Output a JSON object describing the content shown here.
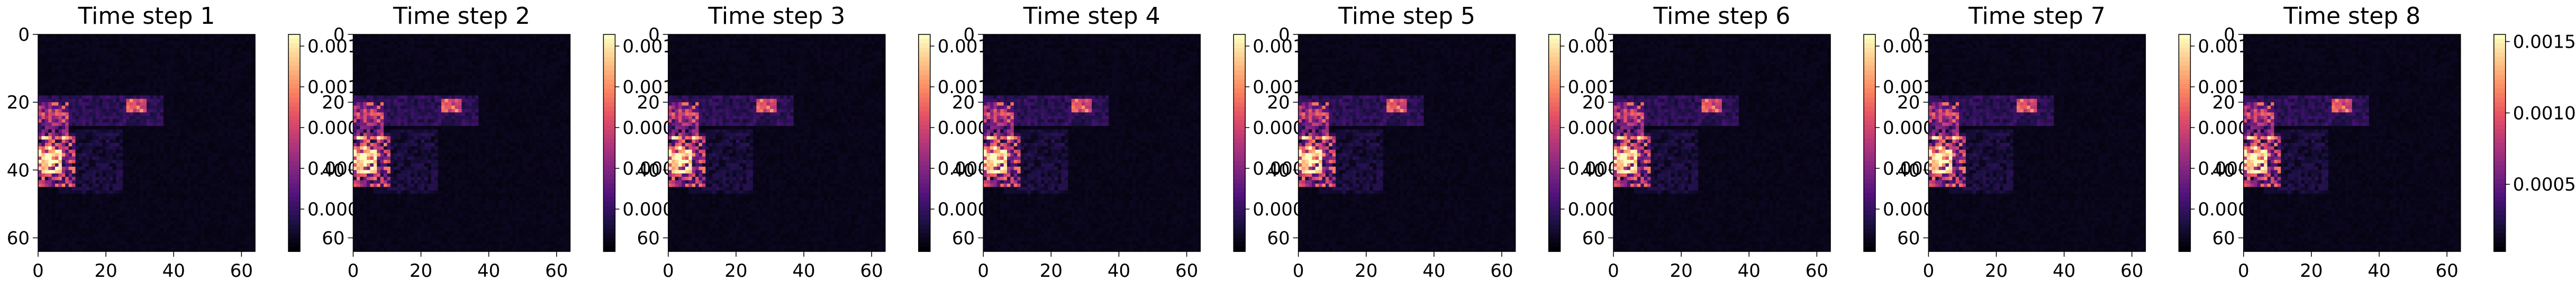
{
  "chart_data": [
    {
      "type": "heatmap",
      "title": "Time step 1",
      "xticks": [
        0,
        20,
        40,
        60
      ],
      "yticks": [
        0,
        20,
        40,
        60
      ],
      "colorbar_ticks": [
        "0.001",
        "0.001",
        "0.000",
        "0.000",
        "0.000"
      ],
      "xlim": [
        0,
        64
      ],
      "ylim": [
        64,
        0
      ]
    },
    {
      "type": "heatmap",
      "title": "Time step 2",
      "xticks": [
        0,
        20,
        40,
        60
      ],
      "yticks": [
        0,
        20,
        40,
        60
      ],
      "colorbar_ticks": [
        "0.001",
        "0.001",
        "0.000",
        "0.000",
        "0.000"
      ],
      "xlim": [
        0,
        64
      ],
      "ylim": [
        64,
        0
      ]
    },
    {
      "type": "heatmap",
      "title": "Time step 3",
      "xticks": [
        0,
        20,
        40,
        60
      ],
      "yticks": [
        0,
        20,
        40,
        60
      ],
      "colorbar_ticks": [
        "0.001",
        "0.001",
        "0.000",
        "0.000",
        "0.000"
      ],
      "xlim": [
        0,
        64
      ],
      "ylim": [
        64,
        0
      ]
    },
    {
      "type": "heatmap",
      "title": "Time step 4",
      "xticks": [
        0,
        20,
        40,
        60
      ],
      "yticks": [
        0,
        20,
        40,
        60
      ],
      "colorbar_ticks": [
        "0.001",
        "0.001",
        "0.000",
        "0.000",
        "0.000"
      ],
      "xlim": [
        0,
        64
      ],
      "ylim": [
        64,
        0
      ]
    },
    {
      "type": "heatmap",
      "title": "Time step 5",
      "xticks": [
        0,
        20,
        40,
        60
      ],
      "yticks": [
        0,
        20,
        40,
        60
      ],
      "colorbar_ticks": [
        "0.001",
        "0.001",
        "0.000",
        "0.000",
        "0.000"
      ],
      "xlim": [
        0,
        64
      ],
      "ylim": [
        64,
        0
      ]
    },
    {
      "type": "heatmap",
      "title": "Time step 6",
      "xticks": [
        0,
        20,
        40,
        60
      ],
      "yticks": [
        0,
        20,
        40,
        60
      ],
      "colorbar_ticks": [
        "0.001",
        "0.001",
        "0.000",
        "0.000",
        "0.000"
      ],
      "xlim": [
        0,
        64
      ],
      "ylim": [
        64,
        0
      ]
    },
    {
      "type": "heatmap",
      "title": "Time step 7",
      "xticks": [
        0,
        20,
        40,
        60
      ],
      "yticks": [
        0,
        20,
        40,
        60
      ],
      "colorbar_ticks": [
        "0.001",
        "0.001",
        "0.000",
        "0.000",
        "0.000"
      ],
      "xlim": [
        0,
        64
      ],
      "ylim": [
        64,
        0
      ]
    },
    {
      "type": "heatmap",
      "title": "Time step 8",
      "xticks": [
        0,
        20,
        40,
        60
      ],
      "yticks": [
        0,
        20,
        40,
        60
      ],
      "colorbar_ticks": [
        "0.0015",
        "0.0010",
        "0.0005"
      ],
      "colorbar_tick_values": [
        0.0015,
        0.001,
        0.0005
      ],
      "xlim": [
        0,
        64
      ],
      "ylim": [
        64,
        0
      ]
    }
  ],
  "colormap": "magma"
}
